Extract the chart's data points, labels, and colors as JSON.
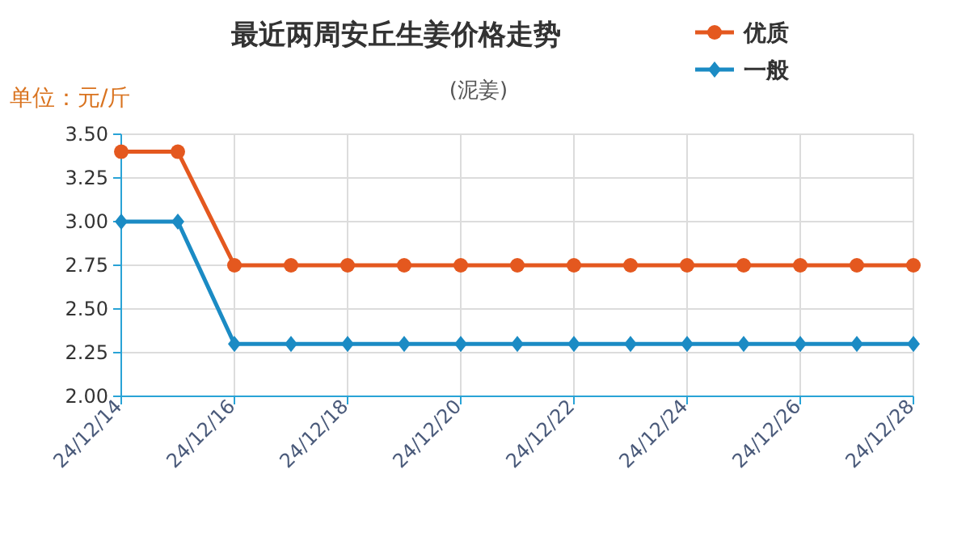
{
  "chart_data": {
    "type": "line",
    "title": "最近两周安丘生姜价格走势",
    "subtitle": "(泥姜)",
    "ylabel": "单位：元/斤",
    "categories": [
      "24/12/14",
      null,
      "24/12/16",
      null,
      "24/12/18",
      null,
      "24/12/20",
      null,
      "24/12/22",
      null,
      "24/12/24",
      null,
      "24/12/26",
      null,
      "24/12/28"
    ],
    "series": [
      {
        "name": "优质",
        "color": "#e4581f",
        "marker": "circle",
        "values": [
          3.4,
          3.4,
          2.75,
          2.75,
          2.75,
          2.75,
          2.75,
          2.75,
          2.75,
          2.75,
          2.75,
          2.75,
          2.75,
          2.75,
          2.75
        ]
      },
      {
        "name": "一般",
        "color": "#1b8bc4",
        "marker": "diamond",
        "values": [
          3.0,
          3.0,
          2.3,
          2.3,
          2.3,
          2.3,
          2.3,
          2.3,
          2.3,
          2.3,
          2.3,
          2.3,
          2.3,
          2.3,
          2.3
        ]
      }
    ],
    "ylim": [
      2.0,
      3.5
    ],
    "yticks": [
      {
        "value": 2.0,
        "label": "2.00"
      },
      {
        "value": 2.25,
        "label": "2.25"
      },
      {
        "value": 2.5,
        "label": "2.50"
      },
      {
        "value": 2.75,
        "label": "2.75"
      },
      {
        "value": 3.0,
        "label": "3.00"
      },
      {
        "value": 3.25,
        "label": "3.25"
      },
      {
        "value": 3.5,
        "label": "3.50"
      }
    ],
    "grid": true,
    "legend": "top right",
    "line_style": "solid"
  }
}
